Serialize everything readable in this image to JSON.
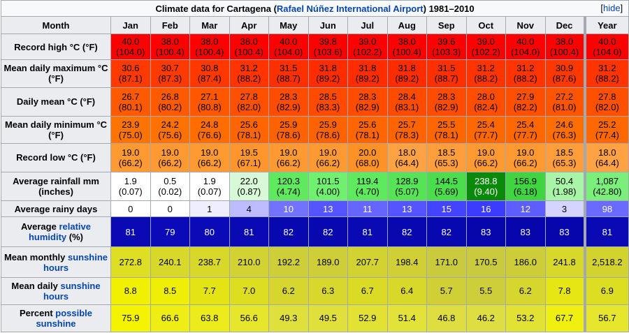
{
  "caption": {
    "prefix": "Climate data for Cartagena (",
    "link": "Rafael Núñez International Airport",
    "suffix": ") 1981–2010",
    "hide_open": "[",
    "hide": "hide",
    "hide_close": "]"
  },
  "header": {
    "month": "Month",
    "months": [
      "Jan",
      "Feb",
      "Mar",
      "Apr",
      "May",
      "Jun",
      "Jul",
      "Aug",
      "Sep",
      "Oct",
      "Nov",
      "Dec"
    ],
    "year": "Year"
  },
  "rows": [
    {
      "label": "Record high °C (°F)",
      "cells": [
        {
          "v": "40.0",
          "f": "(104.0)",
          "bg": "#ff0000",
          "fg": "#000000"
        },
        {
          "v": "38.0",
          "f": "(100.4)",
          "bg": "#ff0000",
          "fg": "#000000"
        },
        {
          "v": "38.0",
          "f": "(100.4)",
          "bg": "#ff0000",
          "fg": "#000000"
        },
        {
          "v": "38.0",
          "f": "(100.4)",
          "bg": "#ff0000",
          "fg": "#000000"
        },
        {
          "v": "40.0",
          "f": "(104.0)",
          "bg": "#ff0000",
          "fg": "#000000"
        },
        {
          "v": "39.8",
          "f": "(103.6)",
          "bg": "#ff0000",
          "fg": "#000000"
        },
        {
          "v": "39.0",
          "f": "(102.2)",
          "bg": "#ff0000",
          "fg": "#000000"
        },
        {
          "v": "38.0",
          "f": "(100.4)",
          "bg": "#ff0000",
          "fg": "#000000"
        },
        {
          "v": "39.6",
          "f": "(103.3)",
          "bg": "#ff0000",
          "fg": "#000000"
        },
        {
          "v": "39.0",
          "f": "(102.2)",
          "bg": "#ff0000",
          "fg": "#000000"
        },
        {
          "v": "40.0",
          "f": "(104.0)",
          "bg": "#ff0000",
          "fg": "#000000"
        },
        {
          "v": "38.0",
          "f": "(100.4)",
          "bg": "#ff0000",
          "fg": "#000000"
        },
        {
          "v": "40.0",
          "f": "(104.0)",
          "bg": "#ff0000",
          "fg": "#000000"
        }
      ]
    },
    {
      "label": "Mean daily maximum °C (°F)",
      "cells": [
        {
          "v": "30.6",
          "f": "(87.1)",
          "bg": "#ff3a00",
          "fg": "#000000"
        },
        {
          "v": "30.7",
          "f": "(87.3)",
          "bg": "#ff3a00",
          "fg": "#000000"
        },
        {
          "v": "30.8",
          "f": "(87.4)",
          "bg": "#ff3800",
          "fg": "#000000"
        },
        {
          "v": "31.2",
          "f": "(88.2)",
          "bg": "#ff3400",
          "fg": "#000000"
        },
        {
          "v": "31.5",
          "f": "(88.7)",
          "bg": "#ff3000",
          "fg": "#000000"
        },
        {
          "v": "31.8",
          "f": "(89.2)",
          "bg": "#ff2c00",
          "fg": "#000000"
        },
        {
          "v": "31.8",
          "f": "(89.2)",
          "bg": "#ff2c00",
          "fg": "#000000"
        },
        {
          "v": "31.8",
          "f": "(89.2)",
          "bg": "#ff2c00",
          "fg": "#000000"
        },
        {
          "v": "31.5",
          "f": "(88.7)",
          "bg": "#ff3000",
          "fg": "#000000"
        },
        {
          "v": "31.2",
          "f": "(88.2)",
          "bg": "#ff3400",
          "fg": "#000000"
        },
        {
          "v": "31.2",
          "f": "(88.2)",
          "bg": "#ff3400",
          "fg": "#000000"
        },
        {
          "v": "30.9",
          "f": "(87.6)",
          "bg": "#ff3800",
          "fg": "#000000"
        },
        {
          "v": "31.2",
          "f": "(88.2)",
          "bg": "#ff3400",
          "fg": "#000000"
        }
      ]
    },
    {
      "label": "Daily mean °C (°F)",
      "cells": [
        {
          "v": "26.7",
          "f": "(80.1)",
          "bg": "#ff5a00",
          "fg": "#000000"
        },
        {
          "v": "26.8",
          "f": "(80.2)",
          "bg": "#ff5a00",
          "fg": "#000000"
        },
        {
          "v": "27.1",
          "f": "(80.8)",
          "bg": "#ff5600",
          "fg": "#000000"
        },
        {
          "v": "27.8",
          "f": "(82.0)",
          "bg": "#ff5000",
          "fg": "#000000"
        },
        {
          "v": "28.3",
          "f": "(82.9)",
          "bg": "#ff4c00",
          "fg": "#000000"
        },
        {
          "v": "28.5",
          "f": "(83.3)",
          "bg": "#ff4a00",
          "fg": "#000000"
        },
        {
          "v": "28.3",
          "f": "(82.9)",
          "bg": "#ff4c00",
          "fg": "#000000"
        },
        {
          "v": "28.4",
          "f": "(83.1)",
          "bg": "#ff4b00",
          "fg": "#000000"
        },
        {
          "v": "28.3",
          "f": "(82.9)",
          "bg": "#ff4c00",
          "fg": "#000000"
        },
        {
          "v": "28.0",
          "f": "(82.4)",
          "bg": "#ff4e00",
          "fg": "#000000"
        },
        {
          "v": "27.9",
          "f": "(82.2)",
          "bg": "#ff4f00",
          "fg": "#000000"
        },
        {
          "v": "27.2",
          "f": "(81.0)",
          "bg": "#ff5500",
          "fg": "#000000"
        },
        {
          "v": "27.8",
          "f": "(82.0)",
          "bg": "#ff5000",
          "fg": "#000000"
        }
      ]
    },
    {
      "label": "Mean daily minimum °C (°F)",
      "cells": [
        {
          "v": "23.9",
          "f": "(75.0)",
          "bg": "#ff7400",
          "fg": "#000000"
        },
        {
          "v": "24.2",
          "f": "(75.6)",
          "bg": "#ff7100",
          "fg": "#000000"
        },
        {
          "v": "24.8",
          "f": "(76.6)",
          "bg": "#ff6c00",
          "fg": "#000000"
        },
        {
          "v": "25.6",
          "f": "(78.1)",
          "bg": "#ff6500",
          "fg": "#000000"
        },
        {
          "v": "25.9",
          "f": "(78.6)",
          "bg": "#ff6200",
          "fg": "#000000"
        },
        {
          "v": "25.9",
          "f": "(78.6)",
          "bg": "#ff6200",
          "fg": "#000000"
        },
        {
          "v": "25.6",
          "f": "(78.1)",
          "bg": "#ff6500",
          "fg": "#000000"
        },
        {
          "v": "25.7",
          "f": "(78.3)",
          "bg": "#ff6400",
          "fg": "#000000"
        },
        {
          "v": "25.5",
          "f": "(78.1)",
          "bg": "#ff6600",
          "fg": "#000000"
        },
        {
          "v": "25.4",
          "f": "(77.7)",
          "bg": "#ff6700",
          "fg": "#000000"
        },
        {
          "v": "25.4",
          "f": "(77.7)",
          "bg": "#ff6700",
          "fg": "#000000"
        },
        {
          "v": "24.6",
          "f": "(76.3)",
          "bg": "#ff6e00",
          "fg": "#000000"
        },
        {
          "v": "25.2",
          "f": "(77.4)",
          "bg": "#ff6800",
          "fg": "#000000"
        }
      ]
    },
    {
      "label": "Record low °C (°F)",
      "cells": [
        {
          "v": "19.0",
          "f": "(66.2)",
          "bg": "#ff9a33",
          "fg": "#000000"
        },
        {
          "v": "19.0",
          "f": "(66.2)",
          "bg": "#ff9a33",
          "fg": "#000000"
        },
        {
          "v": "19.0",
          "f": "(66.2)",
          "bg": "#ff9a33",
          "fg": "#000000"
        },
        {
          "v": "19.5",
          "f": "(67.1)",
          "bg": "#ff962d",
          "fg": "#000000"
        },
        {
          "v": "19.0",
          "f": "(66.2)",
          "bg": "#ff9a33",
          "fg": "#000000"
        },
        {
          "v": "19.0",
          "f": "(66.2)",
          "bg": "#ff9a33",
          "fg": "#000000"
        },
        {
          "v": "20.0",
          "f": "(68.0)",
          "bg": "#ff9226",
          "fg": "#000000"
        },
        {
          "v": "18.0",
          "f": "(64.4)",
          "bg": "#ffa243",
          "fg": "#000000"
        },
        {
          "v": "18.5",
          "f": "(65.3)",
          "bg": "#ff9e3b",
          "fg": "#000000"
        },
        {
          "v": "19.0",
          "f": "(66.2)",
          "bg": "#ff9a33",
          "fg": "#000000"
        },
        {
          "v": "19.0",
          "f": "(66.2)",
          "bg": "#ff9a33",
          "fg": "#000000"
        },
        {
          "v": "18.5",
          "f": "(65.3)",
          "bg": "#ff9e3b",
          "fg": "#000000"
        },
        {
          "v": "18.0",
          "f": "(64.4)",
          "bg": "#ffa243",
          "fg": "#000000"
        }
      ]
    },
    {
      "label": "Average rainfall mm (inches)",
      "cells": [
        {
          "v": "1.9",
          "f": "(0.07)",
          "bg": "#ffffff",
          "fg": "#000000"
        },
        {
          "v": "0.5",
          "f": "(0.02)",
          "bg": "#ffffff",
          "fg": "#000000"
        },
        {
          "v": "1.9",
          "f": "(0.07)",
          "bg": "#ffffff",
          "fg": "#000000"
        },
        {
          "v": "22.0",
          "f": "(0.87)",
          "bg": "#d8f9d8",
          "fg": "#000000"
        },
        {
          "v": "120.3",
          "f": "(4.74)",
          "bg": "#5ee95e",
          "fg": "#000000"
        },
        {
          "v": "101.5",
          "f": "(4.00)",
          "bg": "#6ff06f",
          "fg": "#000000"
        },
        {
          "v": "119.4",
          "f": "(4.70)",
          "bg": "#5ee95e",
          "fg": "#000000"
        },
        {
          "v": "128.9",
          "f": "(5.07)",
          "bg": "#56e456",
          "fg": "#000000"
        },
        {
          "v": "144.5",
          "f": "(5.69)",
          "bg": "#4bdd4b",
          "fg": "#000000"
        },
        {
          "v": "238.8",
          "f": "(9.40)",
          "bg": "#0a8a0a",
          "fg": "#ffffff"
        },
        {
          "v": "156.9",
          "f": "(6.18)",
          "bg": "#40d440",
          "fg": "#000000"
        },
        {
          "v": "50.4",
          "f": "(1.98)",
          "bg": "#a8f5a8",
          "fg": "#000000"
        },
        {
          "v": "1,087",
          "f": "(42.80)",
          "bg": "#7af07a",
          "fg": "#000000"
        }
      ]
    },
    {
      "label": "Average rainy days",
      "cells": [
        {
          "v": "0",
          "f": "",
          "bg": "#ffffff",
          "fg": "#000000"
        },
        {
          "v": "0",
          "f": "",
          "bg": "#ffffff",
          "fg": "#000000"
        },
        {
          "v": "1",
          "f": "",
          "bg": "#eeeeff",
          "fg": "#000000"
        },
        {
          "v": "4",
          "f": "",
          "bg": "#bcbcff",
          "fg": "#000000"
        },
        {
          "v": "10",
          "f": "",
          "bg": "#7272ff",
          "fg": "#ffffff"
        },
        {
          "v": "13",
          "f": "",
          "bg": "#5555ff",
          "fg": "#ffffff"
        },
        {
          "v": "11",
          "f": "",
          "bg": "#6666ff",
          "fg": "#ffffff"
        },
        {
          "v": "13",
          "f": "",
          "bg": "#5555ff",
          "fg": "#ffffff"
        },
        {
          "v": "15",
          "f": "",
          "bg": "#4444ff",
          "fg": "#ffffff"
        },
        {
          "v": "16",
          "f": "",
          "bg": "#3c3cff",
          "fg": "#ffffff"
        },
        {
          "v": "12",
          "f": "",
          "bg": "#5e5eff",
          "fg": "#ffffff"
        },
        {
          "v": "3",
          "f": "",
          "bg": "#d4d4ff",
          "fg": "#000000"
        },
        {
          "v": "98",
          "f": "",
          "bg": "#6a6aff",
          "fg": "#ffffff"
        }
      ]
    },
    {
      "label_pre": "Average ",
      "label_link": "relative humidity",
      "label_post": " (%)",
      "cells": [
        {
          "v": "81",
          "f": "",
          "bg": "#0a0ab4",
          "fg": "#ffffff"
        },
        {
          "v": "79",
          "f": "",
          "bg": "#0a0ab8",
          "fg": "#ffffff"
        },
        {
          "v": "80",
          "f": "",
          "bg": "#0a0ab6",
          "fg": "#ffffff"
        },
        {
          "v": "81",
          "f": "",
          "bg": "#0a0ab4",
          "fg": "#ffffff"
        },
        {
          "v": "82",
          "f": "",
          "bg": "#0808b0",
          "fg": "#ffffff"
        },
        {
          "v": "82",
          "f": "",
          "bg": "#0808b0",
          "fg": "#ffffff"
        },
        {
          "v": "81",
          "f": "",
          "bg": "#0a0ab4",
          "fg": "#ffffff"
        },
        {
          "v": "82",
          "f": "",
          "bg": "#0808b0",
          "fg": "#ffffff"
        },
        {
          "v": "82",
          "f": "",
          "bg": "#0808b0",
          "fg": "#ffffff"
        },
        {
          "v": "83",
          "f": "",
          "bg": "#0606ac",
          "fg": "#ffffff"
        },
        {
          "v": "83",
          "f": "",
          "bg": "#0606ac",
          "fg": "#ffffff"
        },
        {
          "v": "83",
          "f": "",
          "bg": "#0606ac",
          "fg": "#ffffff"
        },
        {
          "v": "81",
          "f": "",
          "bg": "#0a0ab4",
          "fg": "#ffffff"
        }
      ]
    },
    {
      "label_pre": "Mean monthly ",
      "label_link": "sunshine hours",
      "label_post": "",
      "cells": [
        {
          "v": "272.8",
          "f": "",
          "bg": "#dede22",
          "fg": "#000000"
        },
        {
          "v": "240.1",
          "f": "",
          "bg": "#d8d82a",
          "fg": "#000000"
        },
        {
          "v": "238.7",
          "f": "",
          "bg": "#d8d82a",
          "fg": "#000000"
        },
        {
          "v": "210.0",
          "f": "",
          "bg": "#d2d232",
          "fg": "#000000"
        },
        {
          "v": "192.2",
          "f": "",
          "bg": "#cece38",
          "fg": "#000000"
        },
        {
          "v": "189.0",
          "f": "",
          "bg": "#cece38",
          "fg": "#000000"
        },
        {
          "v": "207.7",
          "f": "",
          "bg": "#d2d232",
          "fg": "#000000"
        },
        {
          "v": "198.4",
          "f": "",
          "bg": "#d0d036",
          "fg": "#000000"
        },
        {
          "v": "171.0",
          "f": "",
          "bg": "#caca3e",
          "fg": "#000000"
        },
        {
          "v": "170.5",
          "f": "",
          "bg": "#caca3e",
          "fg": "#000000"
        },
        {
          "v": "186.0",
          "f": "",
          "bg": "#cdcd3a",
          "fg": "#000000"
        },
        {
          "v": "241.8",
          "f": "",
          "bg": "#d8d82a",
          "fg": "#000000"
        },
        {
          "v": "2,518.2",
          "f": "",
          "bg": "#d3d330",
          "fg": "#000000"
        }
      ]
    },
    {
      "label_pre": "Mean daily ",
      "label_link": "sunshine hours",
      "label_post": "",
      "cells": [
        {
          "v": "8.8",
          "f": "",
          "bg": "#f0f000",
          "fg": "#000000"
        },
        {
          "v": "8.5",
          "f": "",
          "bg": "#eeee06",
          "fg": "#000000"
        },
        {
          "v": "7.7",
          "f": "",
          "bg": "#e4e414",
          "fg": "#000000"
        },
        {
          "v": "7.0",
          "f": "",
          "bg": "#dede20",
          "fg": "#000000"
        },
        {
          "v": "6.2",
          "f": "",
          "bg": "#d6d62e",
          "fg": "#000000"
        },
        {
          "v": "6.3",
          "f": "",
          "bg": "#d7d72c",
          "fg": "#000000"
        },
        {
          "v": "6.7",
          "f": "",
          "bg": "#dbdb26",
          "fg": "#000000"
        },
        {
          "v": "6.4",
          "f": "",
          "bg": "#d8d82a",
          "fg": "#000000"
        },
        {
          "v": "5.7",
          "f": "",
          "bg": "#d0d036",
          "fg": "#000000"
        },
        {
          "v": "5.5",
          "f": "",
          "bg": "#cece3a",
          "fg": "#000000"
        },
        {
          "v": "6.2",
          "f": "",
          "bg": "#d6d62e",
          "fg": "#000000"
        },
        {
          "v": "7.8",
          "f": "",
          "bg": "#e6e614",
          "fg": "#000000"
        },
        {
          "v": "6.9",
          "f": "",
          "bg": "#dddd22",
          "fg": "#000000"
        }
      ]
    },
    {
      "label_pre": "Percent ",
      "label_link": "possible sunshine",
      "label_post": "",
      "cells": [
        {
          "v": "75.9",
          "f": "",
          "bg": "#f4f400",
          "fg": "#000000"
        },
        {
          "v": "66.6",
          "f": "",
          "bg": "#eeee14",
          "fg": "#000000"
        },
        {
          "v": "63.8",
          "f": "",
          "bg": "#ecec1c",
          "fg": "#000000"
        },
        {
          "v": "56.6",
          "f": "",
          "bg": "#e6e62c",
          "fg": "#000000"
        },
        {
          "v": "49.3",
          "f": "",
          "bg": "#e0e03c",
          "fg": "#000000"
        },
        {
          "v": "49.5",
          "f": "",
          "bg": "#e0e03c",
          "fg": "#000000"
        },
        {
          "v": "52.9",
          "f": "",
          "bg": "#e2e234",
          "fg": "#000000"
        },
        {
          "v": "51.4",
          "f": "",
          "bg": "#e2e238",
          "fg": "#000000"
        },
        {
          "v": "46.8",
          "f": "",
          "bg": "#dede40",
          "fg": "#000000"
        },
        {
          "v": "46.2",
          "f": "",
          "bg": "#dede42",
          "fg": "#000000"
        },
        {
          "v": "53.2",
          "f": "",
          "bg": "#e2e234",
          "fg": "#000000"
        },
        {
          "v": "67.7",
          "f": "",
          "bg": "#efef10",
          "fg": "#000000"
        },
        {
          "v": "56.7",
          "f": "",
          "bg": "#e6e62c",
          "fg": "#000000"
        }
      ]
    }
  ]
}
